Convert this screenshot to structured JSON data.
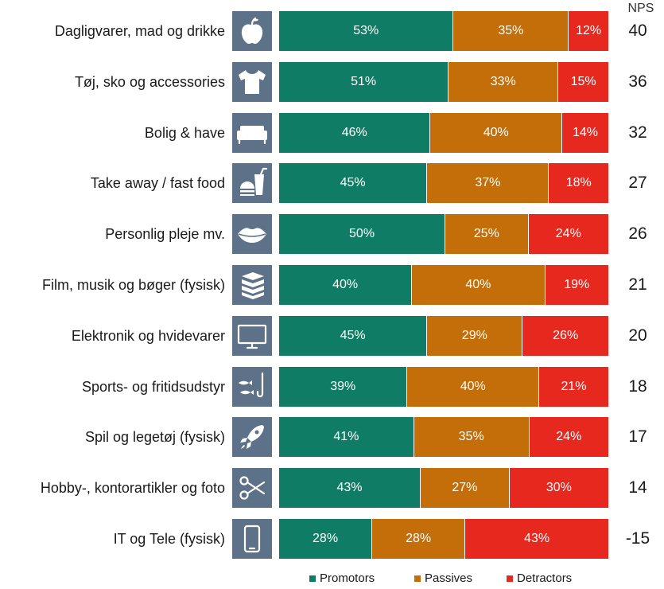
{
  "chart_data": {
    "type": "bar",
    "stacked": true,
    "orientation": "horizontal",
    "nps_header": "NPS",
    "categories": [
      "Dagligvarer, mad og drikke",
      "Tøj, sko og accessories",
      "Bolig &  have",
      "Take away / fast food",
      "Personlig pleje mv.",
      "Film, musik og bøger (fysisk)",
      "Elektronik og hvidevarer",
      "Sports- og fritidsudstyr",
      "Spil og legetøj (fysisk)",
      "Hobby-, kontorartikler og foto",
      "IT og Tele (fysisk)"
    ],
    "icons": [
      "apple-icon",
      "tshirt-icon",
      "sofa-icon",
      "burger-drink-icon",
      "lips-icon",
      "books-icon",
      "monitor-icon",
      "fishing-icon",
      "rocket-icon",
      "scissors-icon",
      "phone-icon"
    ],
    "series": [
      {
        "name": "Promotors",
        "color": "#0f7d65",
        "values": [
          53,
          51,
          46,
          45,
          50,
          40,
          45,
          39,
          41,
          43,
          28
        ]
      },
      {
        "name": "Passives",
        "color": "#c36e08",
        "values": [
          35,
          33,
          40,
          37,
          25,
          40,
          29,
          40,
          35,
          27,
          28
        ]
      },
      {
        "name": "Detractors",
        "color": "#e6281e",
        "values": [
          12,
          15,
          14,
          18,
          24,
          19,
          26,
          21,
          24,
          30,
          43
        ]
      }
    ],
    "nps": [
      "40",
      "36",
      "32",
      "27",
      "26",
      "21",
      "20",
      "18",
      "17",
      "14",
      "-15"
    ],
    "legend_position": "bottom-center"
  }
}
